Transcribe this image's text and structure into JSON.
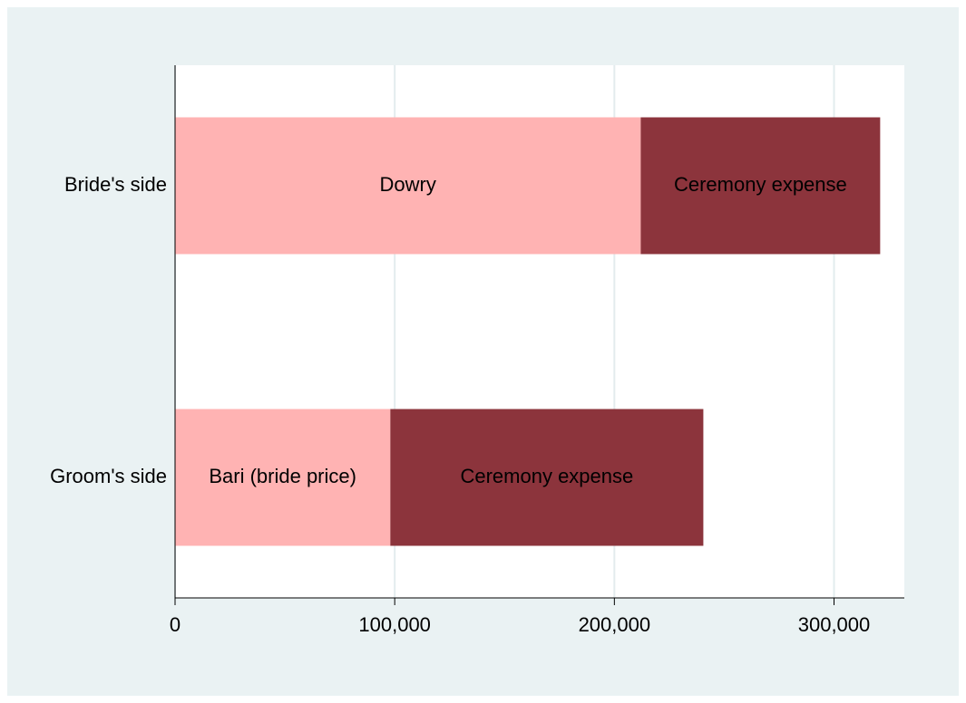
{
  "chart_data": {
    "type": "stacked-barh",
    "categories": [
      "Bride's side",
      "Groom's side"
    ],
    "series": [
      {
        "color": "#ffb3b3",
        "values": [
          212000,
          98000
        ],
        "segment_labels": [
          "Dowry",
          "Bari (bride price)"
        ]
      },
      {
        "color": "#8c343c",
        "values": [
          109000,
          142500
        ],
        "segment_labels": [
          "Ceremony expense",
          "Ceremony expense"
        ]
      }
    ],
    "xlim": [
      0,
      332000
    ],
    "xticks": [
      0,
      {
        "value": 100000,
        "label": "100,000"
      },
      {
        "value": 200000,
        "label": "200,000"
      },
      {
        "value": 300000,
        "label": "300,000"
      }
    ],
    "grid": true
  }
}
